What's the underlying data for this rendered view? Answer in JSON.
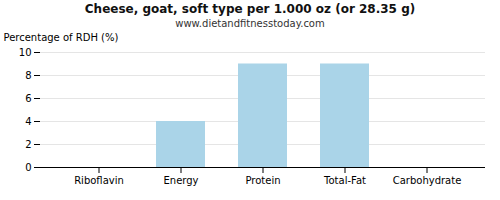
{
  "chart_data": {
    "type": "bar",
    "title": "Cheese, goat, soft type per 1.000 oz (or 28.35 g)",
    "subtitle": "www.dietandfitnesstoday.com",
    "categories": [
      "Riboflavin",
      "Energy",
      "Protein",
      "Total-Fat",
      "Carbohydrate"
    ],
    "values": [
      0.0,
      4.0,
      9.0,
      9.0,
      0.0
    ],
    "color": "#aad4e8",
    "ylabel": "Percentage of RDH (%)",
    "ylim": [
      0,
      10
    ],
    "yticks": [
      0,
      2,
      4,
      6,
      8,
      10
    ],
    "grid": true
  }
}
